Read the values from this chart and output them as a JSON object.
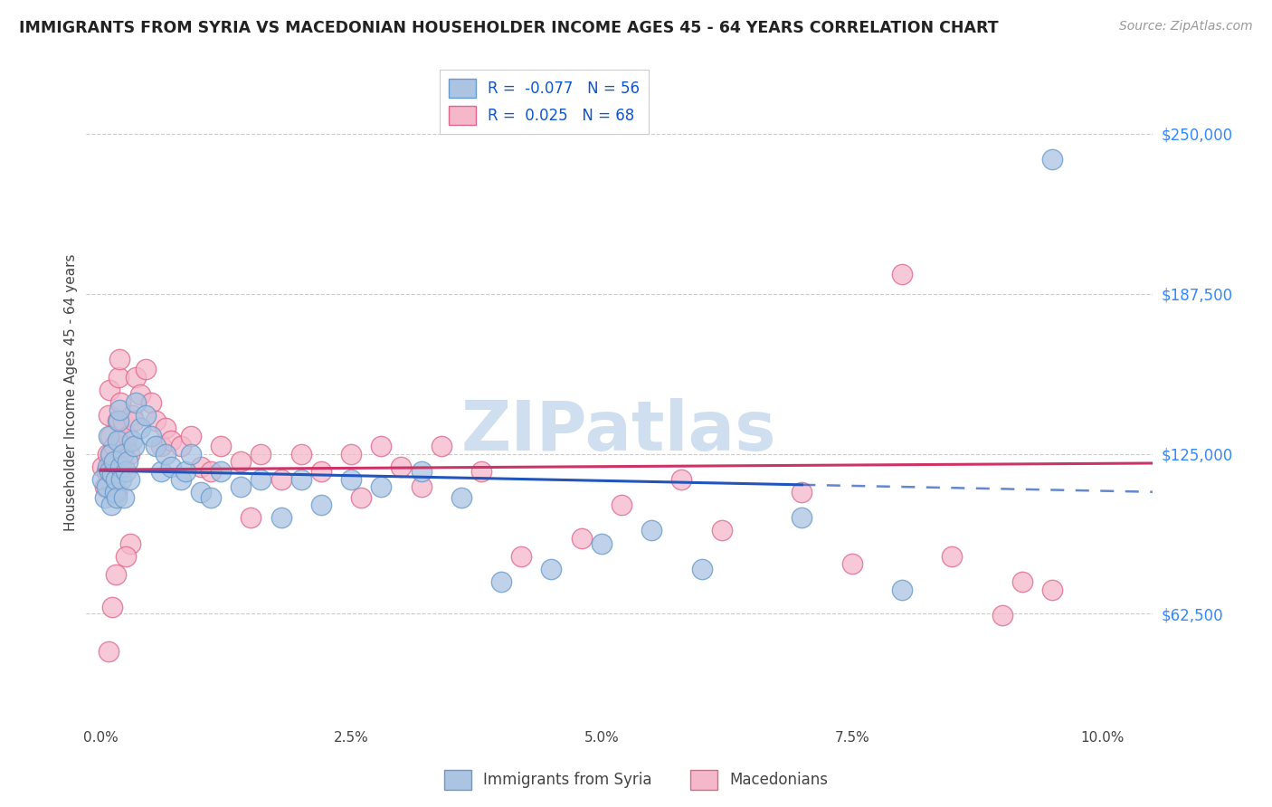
{
  "title": "IMMIGRANTS FROM SYRIA VS MACEDONIAN HOUSEHOLDER INCOME AGES 45 - 64 YEARS CORRELATION CHART",
  "source": "Source: ZipAtlas.com",
  "ylabel": "Householder Income Ages 45 - 64 years",
  "ytick_labels": [
    "$62,500",
    "$125,000",
    "$187,500",
    "$250,000"
  ],
  "ytick_vals": [
    62500,
    125000,
    187500,
    250000
  ],
  "xlim": [
    -0.15,
    10.5
  ],
  "ylim": [
    20000,
    278000
  ],
  "r_syria": -0.077,
  "n_syria": 56,
  "r_macedonian": 0.025,
  "n_macedonian": 68,
  "syria_color": "#aac4e2",
  "syria_edge": "#6699cc",
  "macedonian_color": "#f5b8cb",
  "macedonian_edge": "#dd6688",
  "syria_line_color": "#2255bb",
  "macedonian_line_color": "#cc3366",
  "watermark_color": "#d0dff0",
  "background_color": "#ffffff",
  "legend_label_syria": "Immigrants from Syria",
  "legend_label_macedonian": "Macedonians",
  "syria_solid_end": 7.0,
  "syria_x": [
    0.02,
    0.04,
    0.06,
    0.07,
    0.08,
    0.09,
    0.1,
    0.11,
    0.12,
    0.13,
    0.14,
    0.15,
    0.16,
    0.17,
    0.18,
    0.19,
    0.2,
    0.21,
    0.22,
    0.23,
    0.25,
    0.27,
    0.29,
    0.31,
    0.33,
    0.35,
    0.4,
    0.45,
    0.5,
    0.55,
    0.6,
    0.65,
    0.7,
    0.8,
    0.85,
    0.9,
    1.0,
    1.1,
    1.2,
    1.4,
    1.6,
    1.8,
    2.0,
    2.2,
    2.5,
    2.8,
    3.2,
    3.6,
    4.0,
    4.5,
    5.0,
    5.5,
    6.0,
    7.0,
    8.0,
    9.5
  ],
  "syria_y": [
    115000,
    108000,
    112000,
    120000,
    132000,
    118000,
    125000,
    105000,
    117000,
    122000,
    110000,
    115000,
    108000,
    130000,
    138000,
    142000,
    120000,
    115000,
    125000,
    108000,
    118000,
    122000,
    115000,
    130000,
    128000,
    145000,
    135000,
    140000,
    132000,
    128000,
    118000,
    125000,
    120000,
    115000,
    118000,
    125000,
    110000,
    108000,
    118000,
    112000,
    115000,
    100000,
    115000,
    105000,
    115000,
    112000,
    118000,
    108000,
    75000,
    80000,
    90000,
    95000,
    80000,
    100000,
    72000,
    240000
  ],
  "macedonian_x": [
    0.02,
    0.04,
    0.06,
    0.07,
    0.08,
    0.09,
    0.1,
    0.11,
    0.12,
    0.13,
    0.14,
    0.15,
    0.16,
    0.17,
    0.18,
    0.19,
    0.2,
    0.21,
    0.22,
    0.23,
    0.25,
    0.27,
    0.29,
    0.31,
    0.33,
    0.35,
    0.4,
    0.45,
    0.5,
    0.55,
    0.6,
    0.65,
    0.7,
    0.8,
    0.9,
    1.0,
    1.1,
    1.2,
    1.4,
    1.6,
    1.8,
    2.0,
    2.2,
    2.5,
    2.8,
    3.0,
    3.4,
    3.8,
    4.2,
    4.8,
    5.2,
    5.8,
    6.2,
    7.0,
    7.5,
    8.0,
    8.5,
    9.0,
    9.2,
    9.5,
    2.6,
    3.2,
    1.5,
    0.3,
    0.25,
    0.15,
    0.12,
    0.08
  ],
  "macedonian_y": [
    120000,
    112000,
    118000,
    125000,
    140000,
    150000,
    132000,
    125000,
    118000,
    128000,
    115000,
    120000,
    110000,
    138000,
    155000,
    162000,
    145000,
    130000,
    138000,
    120000,
    128000,
    132000,
    125000,
    140000,
    138000,
    155000,
    148000,
    158000,
    145000,
    138000,
    128000,
    135000,
    130000,
    128000,
    132000,
    120000,
    118000,
    128000,
    122000,
    125000,
    115000,
    125000,
    118000,
    125000,
    128000,
    120000,
    128000,
    118000,
    85000,
    92000,
    105000,
    115000,
    95000,
    110000,
    82000,
    195000,
    85000,
    62000,
    75000,
    72000,
    108000,
    112000,
    100000,
    90000,
    85000,
    78000,
    65000,
    48000
  ]
}
